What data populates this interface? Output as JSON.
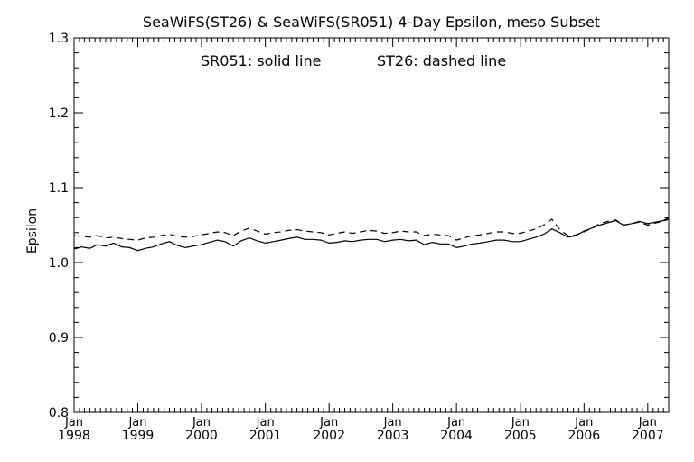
{
  "chart_data": {
    "type": "line",
    "title": "SeaWiFS(ST26) & SeaWiFS(SR051) 4-Day Epsilon, meso Subset",
    "annotation_solid": "SR051: solid line",
    "annotation_dashed": "ST26: dashed line",
    "xlabel": "",
    "ylabel": "Epsilon",
    "xlim": [
      "1998-01-01",
      "2007-05-01"
    ],
    "ylim": [
      0.8,
      1.3
    ],
    "yticks": [
      "0.8",
      "0.9",
      "1.0",
      "1.1",
      "1.2",
      "1.3"
    ],
    "xticks": [
      {
        "month": "Jan",
        "year": "1998"
      },
      {
        "month": "Jan",
        "year": "1999"
      },
      {
        "month": "Jan",
        "year": "2000"
      },
      {
        "month": "Jan",
        "year": "2001"
      },
      {
        "month": "Jan",
        "year": "2002"
      },
      {
        "month": "Jan",
        "year": "2003"
      },
      {
        "month": "Jan",
        "year": "2004"
      },
      {
        "month": "Jan",
        "year": "2005"
      },
      {
        "month": "Jan",
        "year": "2006"
      },
      {
        "month": "Jan",
        "year": "2007"
      }
    ],
    "grid": false,
    "series": [
      {
        "name": "SR051",
        "style": "solid",
        "color": "#000000",
        "x": [
          "1998-01-01",
          "1998-02-15",
          "1998-04-01",
          "1998-05-15",
          "1998-07-01",
          "1998-08-15",
          "1998-10-01",
          "1998-11-15",
          "1999-01-01",
          "1999-02-15",
          "1999-04-01",
          "1999-05-15",
          "1999-07-01",
          "1999-08-15",
          "1999-10-01",
          "1999-11-15",
          "2000-01-01",
          "2000-02-15",
          "2000-04-01",
          "2000-05-15",
          "2000-07-01",
          "2000-08-15",
          "2000-10-01",
          "2000-11-15",
          "2001-01-01",
          "2001-02-15",
          "2001-04-01",
          "2001-05-15",
          "2001-07-01",
          "2001-08-15",
          "2001-10-01",
          "2001-11-15",
          "2002-01-01",
          "2002-02-15",
          "2002-04-01",
          "2002-05-15",
          "2002-07-01",
          "2002-08-15",
          "2002-10-01",
          "2002-11-15",
          "2003-01-01",
          "2003-02-15",
          "2003-04-01",
          "2003-05-15",
          "2003-07-01",
          "2003-08-15",
          "2003-10-01",
          "2003-11-15",
          "2004-01-01",
          "2004-02-15",
          "2004-04-01",
          "2004-05-15",
          "2004-07-01",
          "2004-08-15",
          "2004-10-01",
          "2004-11-15",
          "2005-01-01",
          "2005-02-15",
          "2005-04-01",
          "2005-05-15",
          "2005-07-01",
          "2005-08-15",
          "2005-10-01",
          "2005-11-15",
          "2006-01-01",
          "2006-02-15",
          "2006-04-01",
          "2006-05-15",
          "2006-07-01",
          "2006-08-15",
          "2006-10-01",
          "2006-11-15",
          "2007-01-01",
          "2007-02-15",
          "2007-04-01",
          "2007-05-01"
        ],
        "values": [
          1.018,
          1.021,
          1.019,
          1.024,
          1.022,
          1.026,
          1.021,
          1.02,
          1.016,
          1.019,
          1.021,
          1.025,
          1.028,
          1.023,
          1.02,
          1.022,
          1.024,
          1.027,
          1.03,
          1.028,
          1.022,
          1.029,
          1.033,
          1.029,
          1.026,
          1.028,
          1.03,
          1.032,
          1.034,
          1.031,
          1.031,
          1.03,
          1.026,
          1.027,
          1.029,
          1.028,
          1.03,
          1.031,
          1.031,
          1.028,
          1.03,
          1.031,
          1.029,
          1.03,
          1.024,
          1.027,
          1.025,
          1.025,
          1.02,
          1.022,
          1.025,
          1.026,
          1.028,
          1.03,
          1.03,
          1.028,
          1.028,
          1.031,
          1.034,
          1.038,
          1.045,
          1.04,
          1.034,
          1.036,
          1.042,
          1.046,
          1.05,
          1.053,
          1.056,
          1.05,
          1.052,
          1.055,
          1.052,
          1.054,
          1.056,
          1.06
        ]
      },
      {
        "name": "ST26",
        "style": "dashed",
        "color": "#000000",
        "x": [
          "1998-01-01",
          "1998-02-15",
          "1998-04-01",
          "1998-05-15",
          "1998-07-01",
          "1998-08-15",
          "1998-10-01",
          "1998-11-15",
          "1999-01-01",
          "1999-02-15",
          "1999-04-01",
          "1999-05-15",
          "1999-07-01",
          "1999-08-15",
          "1999-10-01",
          "1999-11-15",
          "2000-01-01",
          "2000-02-15",
          "2000-04-01",
          "2000-05-15",
          "2000-07-01",
          "2000-08-15",
          "2000-10-01",
          "2000-11-15",
          "2001-01-01",
          "2001-02-15",
          "2001-04-01",
          "2001-05-15",
          "2001-07-01",
          "2001-08-15",
          "2001-10-01",
          "2001-11-15",
          "2002-01-01",
          "2002-02-15",
          "2002-04-01",
          "2002-05-15",
          "2002-07-01",
          "2002-08-15",
          "2002-10-01",
          "2002-11-15",
          "2003-01-01",
          "2003-02-15",
          "2003-04-01",
          "2003-05-15",
          "2003-07-01",
          "2003-08-15",
          "2003-10-01",
          "2003-11-15",
          "2004-01-01",
          "2004-02-15",
          "2004-04-01",
          "2004-05-15",
          "2004-07-01",
          "2004-08-15",
          "2004-10-01",
          "2004-11-15",
          "2005-01-01",
          "2005-02-15",
          "2005-04-01",
          "2005-05-15",
          "2005-07-01",
          "2005-08-15",
          "2005-10-01",
          "2005-11-15",
          "2006-01-01",
          "2006-02-15",
          "2006-04-01",
          "2006-05-15",
          "2006-07-01",
          "2006-08-15",
          "2006-10-01",
          "2006-11-15",
          "2007-01-01",
          "2007-02-15",
          "2007-04-01",
          "2007-05-01"
        ],
        "values": [
          1.036,
          1.035,
          1.034,
          1.036,
          1.033,
          1.034,
          1.032,
          1.031,
          1.03,
          1.033,
          1.034,
          1.036,
          1.038,
          1.035,
          1.034,
          1.035,
          1.037,
          1.039,
          1.041,
          1.04,
          1.036,
          1.042,
          1.046,
          1.042,
          1.038,
          1.04,
          1.041,
          1.043,
          1.044,
          1.042,
          1.041,
          1.04,
          1.037,
          1.039,
          1.041,
          1.039,
          1.041,
          1.043,
          1.042,
          1.039,
          1.04,
          1.042,
          1.041,
          1.041,
          1.036,
          1.038,
          1.037,
          1.036,
          1.03,
          1.033,
          1.036,
          1.037,
          1.039,
          1.041,
          1.041,
          1.039,
          1.039,
          1.042,
          1.045,
          1.05,
          1.058,
          1.044,
          1.036,
          1.037,
          1.041,
          1.046,
          1.052,
          1.055,
          1.057,
          1.05,
          1.052,
          1.054,
          1.05,
          1.053,
          1.055,
          1.058
        ]
      }
    ]
  }
}
